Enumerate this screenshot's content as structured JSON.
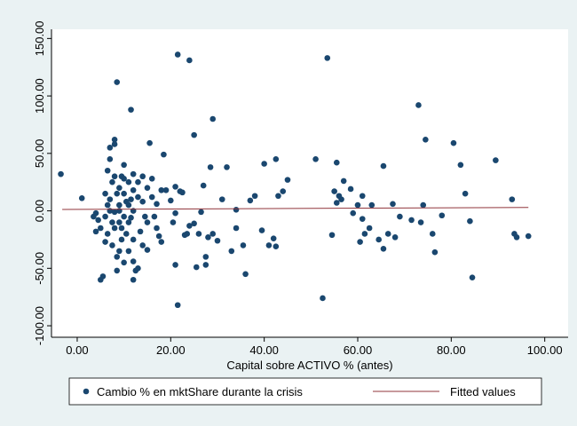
{
  "chart_data": {
    "type": "scatter",
    "x_label": "Capital sobre ACTIVO % (antes)",
    "xlim": [
      -5.5,
      105
    ],
    "ylim": [
      -110,
      158
    ],
    "xticks": [
      {
        "value": 0,
        "label": "0.00"
      },
      {
        "value": 20,
        "label": "20.00"
      },
      {
        "value": 40,
        "label": "40.00"
      },
      {
        "value": 60,
        "label": "60.00"
      },
      {
        "value": 80,
        "label": "80.00"
      },
      {
        "value": 100,
        "label": "100.00"
      }
    ],
    "yticks": [
      {
        "value": -100,
        "label": "-100.00"
      },
      {
        "value": -50,
        "label": "-50.00"
      },
      {
        "value": 0,
        "label": "0.00"
      },
      {
        "value": 50,
        "label": "50.00"
      },
      {
        "value": 100,
        "label": "100.00"
      },
      {
        "value": 150,
        "label": "150.00"
      }
    ],
    "grid": false,
    "series": [
      {
        "name": "Cambio % en mktShare durante la crisis",
        "color": "#1a476f",
        "mode": "markers",
        "x": [
          -3.5,
          1,
          8.5,
          11.5,
          21.5,
          24,
          53.5,
          25,
          29,
          21.5,
          52.5,
          73,
          74.5,
          80.5,
          89.5,
          82,
          93,
          93.5,
          94,
          96.5,
          84.5,
          84,
          78,
          76.5,
          76,
          74,
          73.5,
          71.5,
          83,
          69,
          67.5,
          68,
          66.5,
          65.5,
          65.5,
          64.5,
          62.5,
          61.5,
          60.5,
          61,
          61,
          63,
          60,
          58.5,
          59,
          57,
          56.5,
          56,
          55.5,
          55,
          55.5,
          54.5,
          51,
          45,
          44,
          43,
          42.5,
          42,
          42.5,
          41,
          40,
          39.5,
          38,
          37,
          36,
          35.5,
          34,
          34,
          33,
          32,
          31,
          30,
          29,
          28,
          28.5,
          27.5,
          27.5,
          27,
          26.5,
          26,
          25.5,
          25,
          24,
          23.5,
          23,
          22.5,
          22,
          21,
          21,
          21,
          20.5,
          20,
          19,
          18.5,
          18,
          17,
          17,
          16.5,
          16,
          15.5,
          15,
          15,
          14,
          14,
          13.5,
          13,
          12.5,
          12,
          12,
          12,
          11.5,
          11,
          11,
          10.5,
          10,
          10,
          10,
          9.5,
          9.5,
          9,
          9,
          9,
          8.5,
          8.5,
          8,
          8,
          8,
          7.5,
          7.5,
          7,
          7,
          6.5,
          6.5,
          6,
          6,
          5.5,
          5,
          5,
          4.5,
          4,
          4,
          3.5,
          7,
          11,
          12,
          13,
          14,
          9,
          10,
          12,
          13,
          8,
          7,
          6,
          11,
          10,
          12,
          9,
          8.5,
          14.5,
          16,
          17.5,
          18,
          15,
          11.5,
          10.5,
          9.5,
          8,
          7.5,
          6.5
        ],
        "values": [
          32,
          11,
          112,
          88,
          136,
          131,
          133,
          66,
          80,
          -82,
          -76,
          92,
          62,
          59,
          44,
          40,
          10,
          -20,
          -23,
          -22,
          -58,
          -9,
          -4,
          -36,
          -20,
          5,
          -10,
          -8,
          15,
          -5,
          6,
          -23,
          -20,
          -33,
          39,
          -25,
          -15,
          -20,
          -27,
          13,
          -7,
          5,
          5,
          19,
          -2,
          26,
          10,
          13,
          42,
          17,
          7,
          -21,
          45,
          27,
          17,
          13,
          45,
          -24,
          -31,
          -30,
          41,
          -17,
          13,
          9,
          -55,
          -30,
          1,
          -15,
          -35,
          38,
          10,
          -26,
          -20,
          -23,
          38,
          -47,
          -40,
          22,
          -1,
          -20,
          -49,
          -11,
          -13,
          -20,
          -21,
          16,
          17,
          21,
          -47,
          -2,
          -10,
          9,
          18,
          49,
          -27,
          -15,
          6,
          -5,
          12,
          59,
          -10,
          -34,
          -30,
          30,
          -18,
          -50,
          -52,
          -60,
          -44,
          0,
          10,
          25,
          -35,
          -20,
          40,
          15,
          -5,
          30,
          -25,
          5,
          -10,
          20,
          -40,
          -52,
          62,
          58,
          -15,
          25,
          -30,
          55,
          10,
          -20,
          35,
          -5,
          -27,
          -57,
          -60,
          -15,
          -8,
          -18,
          -2,
          -5,
          45,
          5,
          18,
          25,
          8,
          -35,
          -45,
          -25,
          12,
          -1,
          0,
          15,
          -10,
          28,
          32,
          0,
          15,
          -5,
          28,
          -22,
          18,
          20,
          -6,
          8,
          -15,
          30,
          -10,
          5
        ]
      },
      {
        "name": "Fitted values",
        "color": "#90353b",
        "mode": "line",
        "x": [
          -3.2,
          96.5
        ],
        "values": [
          1.2,
          3
        ]
      }
    ]
  }
}
